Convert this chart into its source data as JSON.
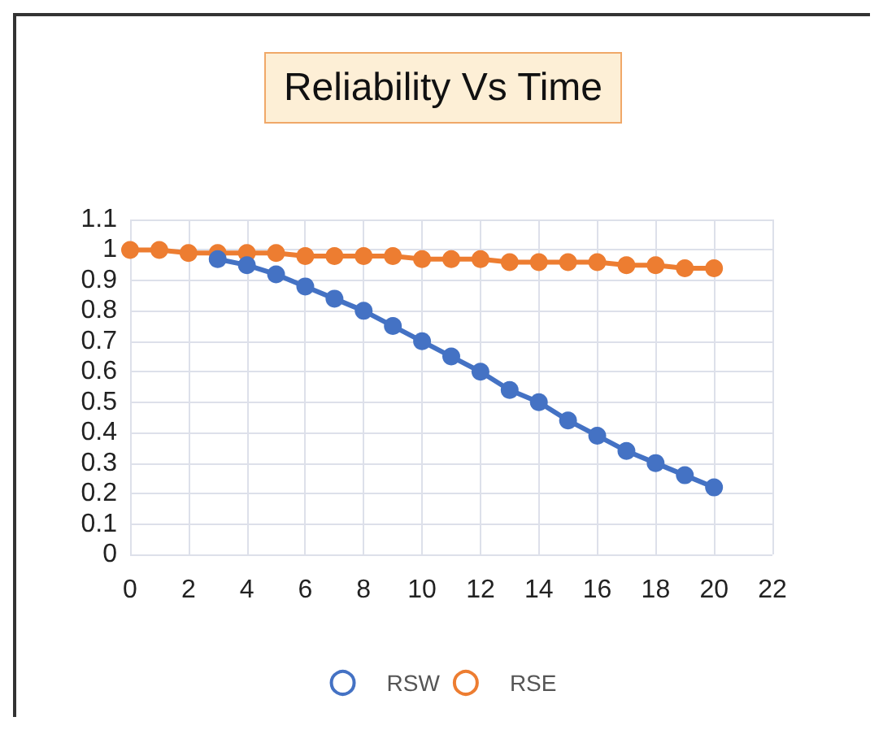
{
  "chart_data": {
    "type": "line",
    "title": "Reliability Vs Time",
    "x": [
      0,
      1,
      2,
      3,
      4,
      5,
      6,
      7,
      8,
      9,
      10,
      11,
      12,
      13,
      14,
      15,
      16,
      17,
      18,
      19,
      20
    ],
    "series": [
      {
        "name": "RSW",
        "color": "#4472c4",
        "values": [
          null,
          null,
          null,
          0.97,
          0.95,
          0.92,
          0.88,
          0.84,
          0.8,
          0.75,
          0.7,
          0.65,
          0.6,
          0.54,
          0.5,
          0.44,
          0.39,
          0.34,
          0.3,
          0.26,
          0.22
        ]
      },
      {
        "name": "RSE",
        "color": "#ed7d31",
        "values": [
          1,
          1,
          0.99,
          0.99,
          0.99,
          0.99,
          0.98,
          0.98,
          0.98,
          0.98,
          0.97,
          0.97,
          0.97,
          0.96,
          0.96,
          0.96,
          0.96,
          0.95,
          0.95,
          0.94,
          0.94
        ]
      }
    ],
    "xlim": [
      0,
      22
    ],
    "xticks": [
      0,
      2,
      4,
      6,
      8,
      10,
      12,
      14,
      16,
      18,
      20,
      22
    ],
    "ylim": [
      0,
      1.1
    ],
    "yticks": [
      0,
      0.1,
      0.2,
      0.3,
      0.4,
      0.5,
      0.6,
      0.7,
      0.8,
      0.9,
      1,
      1.1
    ],
    "grid": true,
    "legend": "bottom",
    "marker": "circle",
    "line_style": "solid"
  }
}
